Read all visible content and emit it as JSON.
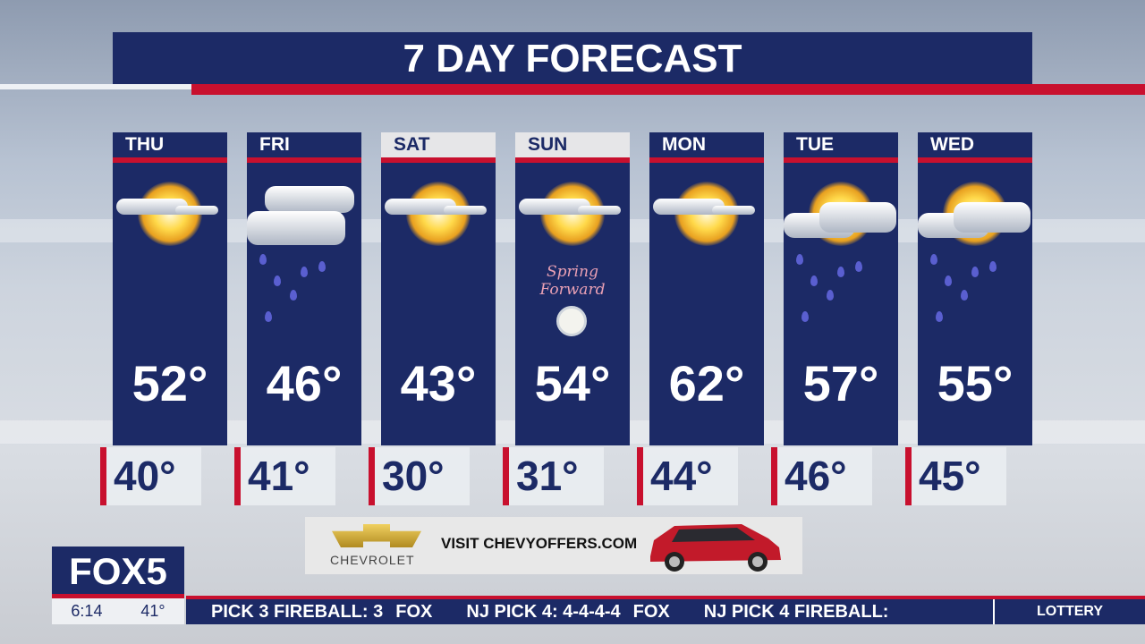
{
  "title": "7 DAY FORECAST",
  "days": [
    {
      "day": "THU",
      "high": "52°",
      "low": "40°",
      "icon": "partly-sunny-icon",
      "light": false
    },
    {
      "day": "FRI",
      "high": "46°",
      "low": "41°",
      "icon": "rain-cloud-icon",
      "light": false
    },
    {
      "day": "SAT",
      "high": "43°",
      "low": "30°",
      "icon": "partly-sunny-icon",
      "light": true
    },
    {
      "day": "SUN",
      "high": "54°",
      "low": "31°",
      "icon": "partly-sunny-icon",
      "light": true,
      "note": "Spring Forward"
    },
    {
      "day": "MON",
      "high": "62°",
      "low": "44°",
      "icon": "partly-sunny-icon",
      "light": false
    },
    {
      "day": "TUE",
      "high": "57°",
      "low": "46°",
      "icon": "sun-cloud-rain-icon",
      "light": false
    },
    {
      "day": "WED",
      "high": "55°",
      "low": "45°",
      "icon": "sun-cloud-rain-icon",
      "light": false
    }
  ],
  "ad": {
    "brand": "CHEVROLET",
    "text": "VISIT CHEVYOFFERS.COM"
  },
  "station": {
    "logo": "FOX5",
    "time": "6:14",
    "temp": "41°"
  },
  "ticker": {
    "items": [
      "PICK 3 FIREBALL: 3",
      "FOX",
      "NJ PICK 4: 4-4-4-4",
      "FOX",
      "NJ PICK 4 FIREBALL:"
    ],
    "section": "LOTTERY"
  },
  "colors": {
    "navy": "#1c2a66",
    "red": "#c8102e"
  }
}
